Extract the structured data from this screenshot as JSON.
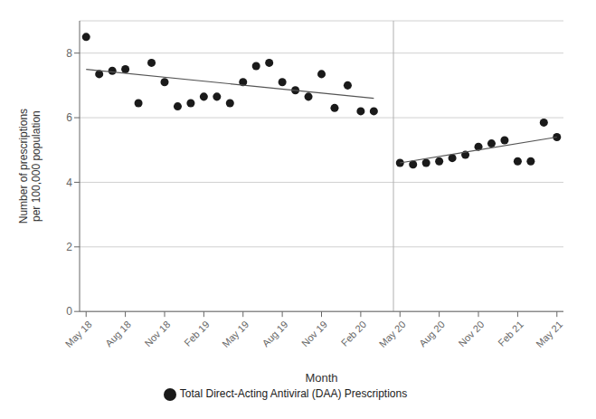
{
  "chart_data": {
    "type": "scatter",
    "xlabel": "Month",
    "ylabel": "Number of prescriptions\nper 100,000 population",
    "xlim": [
      -0.5,
      36.5
    ],
    "xticks": [
      {
        "value": 0,
        "label": "May 18"
      },
      {
        "value": 3,
        "label": "Aug 18"
      },
      {
        "value": 6,
        "label": "Nov 18"
      },
      {
        "value": 9,
        "label": "Feb 19"
      },
      {
        "value": 12,
        "label": "May 19"
      },
      {
        "value": 15,
        "label": "Aug 19"
      },
      {
        "value": 18,
        "label": "Nov 19"
      },
      {
        "value": 21,
        "label": "Feb 20"
      },
      {
        "value": 24,
        "label": "May 20"
      },
      {
        "value": 27,
        "label": "Aug 20"
      },
      {
        "value": 30,
        "label": "Nov 20"
      },
      {
        "value": 33,
        "label": "Feb 21"
      },
      {
        "value": 36,
        "label": "May 21"
      }
    ],
    "ylim": [
      0,
      9
    ],
    "yticks": [
      0,
      2,
      4,
      6,
      8
    ],
    "grid": true,
    "legend": "bottom",
    "series": [
      {
        "name": "Total Direct-Acting Antiviral (DAA) Prescriptions",
        "type": "scatter",
        "color": "#1a1a1a",
        "x": [
          0,
          1,
          2,
          3,
          4,
          5,
          6,
          7,
          8,
          9,
          10,
          11,
          12,
          13,
          14,
          15,
          16,
          17,
          18,
          19,
          20,
          21,
          22,
          24,
          25,
          26,
          27,
          28,
          29,
          30,
          31,
          32,
          33,
          34,
          35,
          36
        ],
        "values": [
          8.5,
          7.35,
          7.45,
          7.5,
          6.45,
          7.7,
          7.1,
          6.35,
          6.45,
          6.65,
          6.65,
          6.45,
          7.1,
          7.6,
          7.7,
          7.1,
          6.85,
          6.65,
          7.35,
          6.3,
          7.0,
          6.2,
          6.2,
          4.6,
          4.55,
          4.6,
          4.65,
          4.75,
          4.85,
          5.1,
          5.2,
          5.3,
          4.65,
          4.65,
          5.85,
          5.4
        ]
      },
      {
        "type": "line",
        "color": "#555555",
        "x": [
          0,
          22
        ],
        "values": [
          7.5,
          6.6
        ]
      },
      {
        "type": "line",
        "color": "#555555",
        "x": [
          24,
          36
        ],
        "values": [
          4.6,
          5.4
        ]
      }
    ],
    "vlines": [
      {
        "x": 23.5,
        "color": "#b0b0b0"
      }
    ]
  }
}
